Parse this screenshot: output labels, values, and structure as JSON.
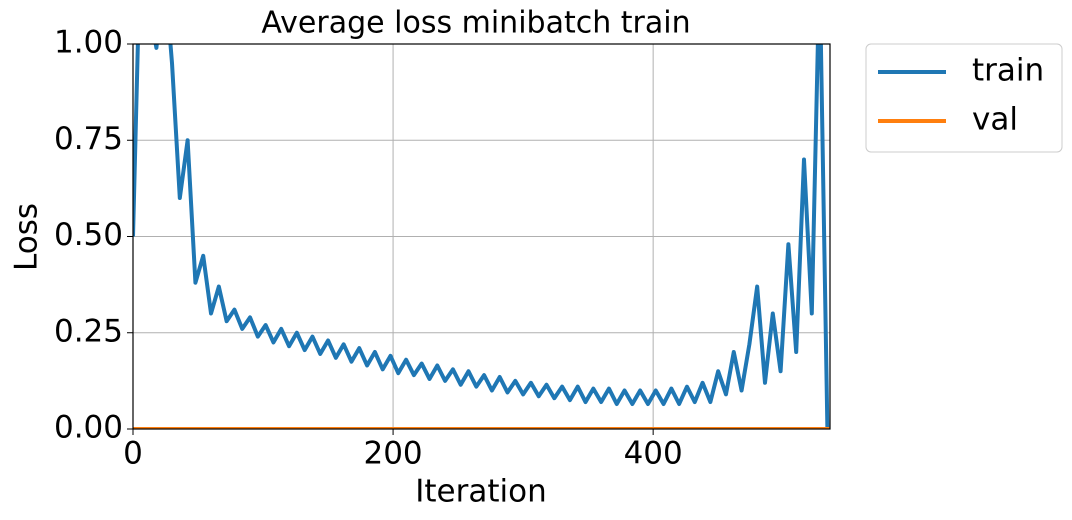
{
  "chart_data": {
    "type": "line",
    "title": "Average loss minibatch train",
    "x_label": "Iteration",
    "y_label": "Loss",
    "xlim": [
      0,
      536
    ],
    "ylim": [
      0,
      1
    ],
    "xticks": [
      0,
      200,
      400
    ],
    "yticks": [
      {
        "value": 0,
        "label": "0.00"
      },
      0.25,
      {
        "value": 0.5,
        "label": "0.50"
      },
      0.75,
      {
        "value": 1,
        "label": "1.00"
      }
    ],
    "grid": true,
    "legend": "outside-upper-right",
    "series": [
      {
        "name": "train",
        "color": "#1f77b4",
        "x": [
          0,
          6,
          12,
          18,
          24,
          30,
          36,
          42,
          48,
          54,
          60,
          66,
          72,
          78,
          84,
          90,
          96,
          102,
          108,
          114,
          120,
          126,
          132,
          138,
          144,
          150,
          156,
          162,
          168,
          174,
          180,
          186,
          192,
          198,
          204,
          210,
          216,
          222,
          228,
          234,
          240,
          246,
          252,
          258,
          264,
          270,
          276,
          282,
          288,
          294,
          300,
          306,
          312,
          318,
          324,
          330,
          336,
          342,
          348,
          354,
          360,
          366,
          372,
          378,
          384,
          390,
          396,
          402,
          408,
          414,
          420,
          426,
          432,
          438,
          444,
          450,
          456,
          462,
          468,
          474,
          480,
          486,
          492,
          498,
          504,
          510,
          516,
          522,
          528,
          534
        ],
        "values": [
          0.5,
          1.3,
          1.1,
          0.99,
          1.2,
          0.95,
          0.6,
          0.75,
          0.38,
          0.45,
          0.3,
          0.37,
          0.28,
          0.31,
          0.26,
          0.29,
          0.24,
          0.27,
          0.225,
          0.26,
          0.215,
          0.25,
          0.205,
          0.24,
          0.195,
          0.23,
          0.185,
          0.22,
          0.175,
          0.21,
          0.165,
          0.2,
          0.155,
          0.19,
          0.145,
          0.18,
          0.14,
          0.17,
          0.13,
          0.165,
          0.125,
          0.155,
          0.115,
          0.15,
          0.11,
          0.14,
          0.1,
          0.135,
          0.095,
          0.125,
          0.09,
          0.12,
          0.085,
          0.115,
          0.08,
          0.11,
          0.075,
          0.11,
          0.07,
          0.105,
          0.07,
          0.105,
          0.065,
          0.1,
          0.065,
          0.1,
          0.065,
          0.1,
          0.065,
          0.105,
          0.065,
          0.11,
          0.07,
          0.12,
          0.07,
          0.15,
          0.09,
          0.2,
          0.1,
          0.22,
          0.37,
          0.12,
          0.3,
          0.15,
          0.48,
          0.2,
          0.7,
          0.3,
          1.2,
          0
        ]
      },
      {
        "name": "val",
        "color": "#ff7f0e",
        "x": [
          0,
          536
        ],
        "values": [
          0,
          0
        ]
      }
    ]
  }
}
